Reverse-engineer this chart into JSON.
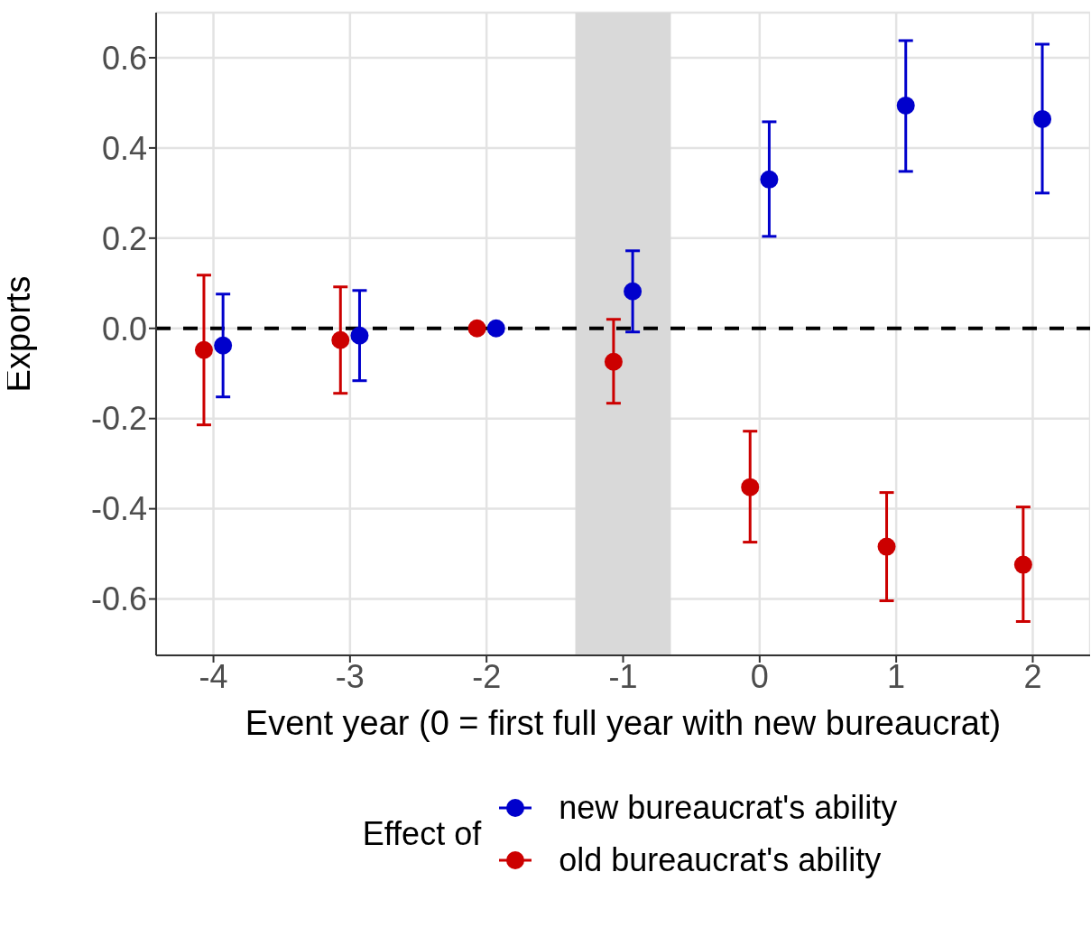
{
  "chart_data": {
    "type": "scatter",
    "xlabel": "Event year (0 = first full year with new bureaucrat)",
    "ylabel": "Exports",
    "legend_title": "Effect of",
    "xlim": [
      -4.42,
      2.42
    ],
    "xticks": [
      -4,
      -3,
      -2,
      -1,
      0,
      1,
      2
    ],
    "ylim": [
      -0.725,
      0.7
    ],
    "yticks": [
      {
        "value": -0.6,
        "label": "-0.6"
      },
      {
        "value": -0.4,
        "label": "-0.4"
      },
      {
        "value": -0.2,
        "label": "-0.2"
      },
      {
        "value": 0,
        "label": "0.0"
      },
      {
        "value": 0.2,
        "label": "0.2"
      },
      {
        "value": 0.4,
        "label": "0.4"
      },
      {
        "value": 0.6,
        "label": "0.6"
      }
    ],
    "grid": true,
    "legend": "bottom",
    "marker": "circle",
    "series": [
      {
        "name": "new bureaucrat's ability",
        "color": "#0000cc",
        "x": [
          -3.93,
          -2.93,
          -1.93,
          -0.93,
          0.07,
          1.07,
          2.07
        ],
        "values": [
          -0.038,
          -0.016,
          0,
          0.082,
          0.33,
          0.494,
          0.464
        ],
        "errors": [
          [
            -0.152,
            0.076
          ],
          [
            -0.116,
            0.084
          ],
          null,
          [
            -0.008,
            0.172
          ],
          [
            0.204,
            0.458
          ],
          [
            0.348,
            0.638
          ],
          [
            0.3,
            0.63
          ]
        ]
      },
      {
        "name": "old bureaucrat's ability",
        "color": "#cc0000",
        "x": [
          -4.07,
          -3.07,
          -2.07,
          -1.07,
          -0.07,
          0.93,
          1.93
        ],
        "values": [
          -0.048,
          -0.026,
          0,
          -0.074,
          -0.352,
          -0.484,
          -0.524
        ],
        "errors": [
          [
            -0.214,
            0.118
          ],
          [
            -0.144,
            0.092
          ],
          null,
          [
            -0.166,
            0.02
          ],
          [
            -0.474,
            -0.228
          ],
          [
            -0.604,
            -0.364
          ],
          [
            -0.65,
            -0.396
          ]
        ]
      }
    ],
    "ref_lines": [
      {
        "axis": "y",
        "value": 0,
        "color": "#000000",
        "line_style": "dashed"
      }
    ],
    "bands": [
      {
        "axis": "x",
        "from": -1.35,
        "to": -0.65,
        "color": "#d9d9d9"
      }
    ]
  }
}
